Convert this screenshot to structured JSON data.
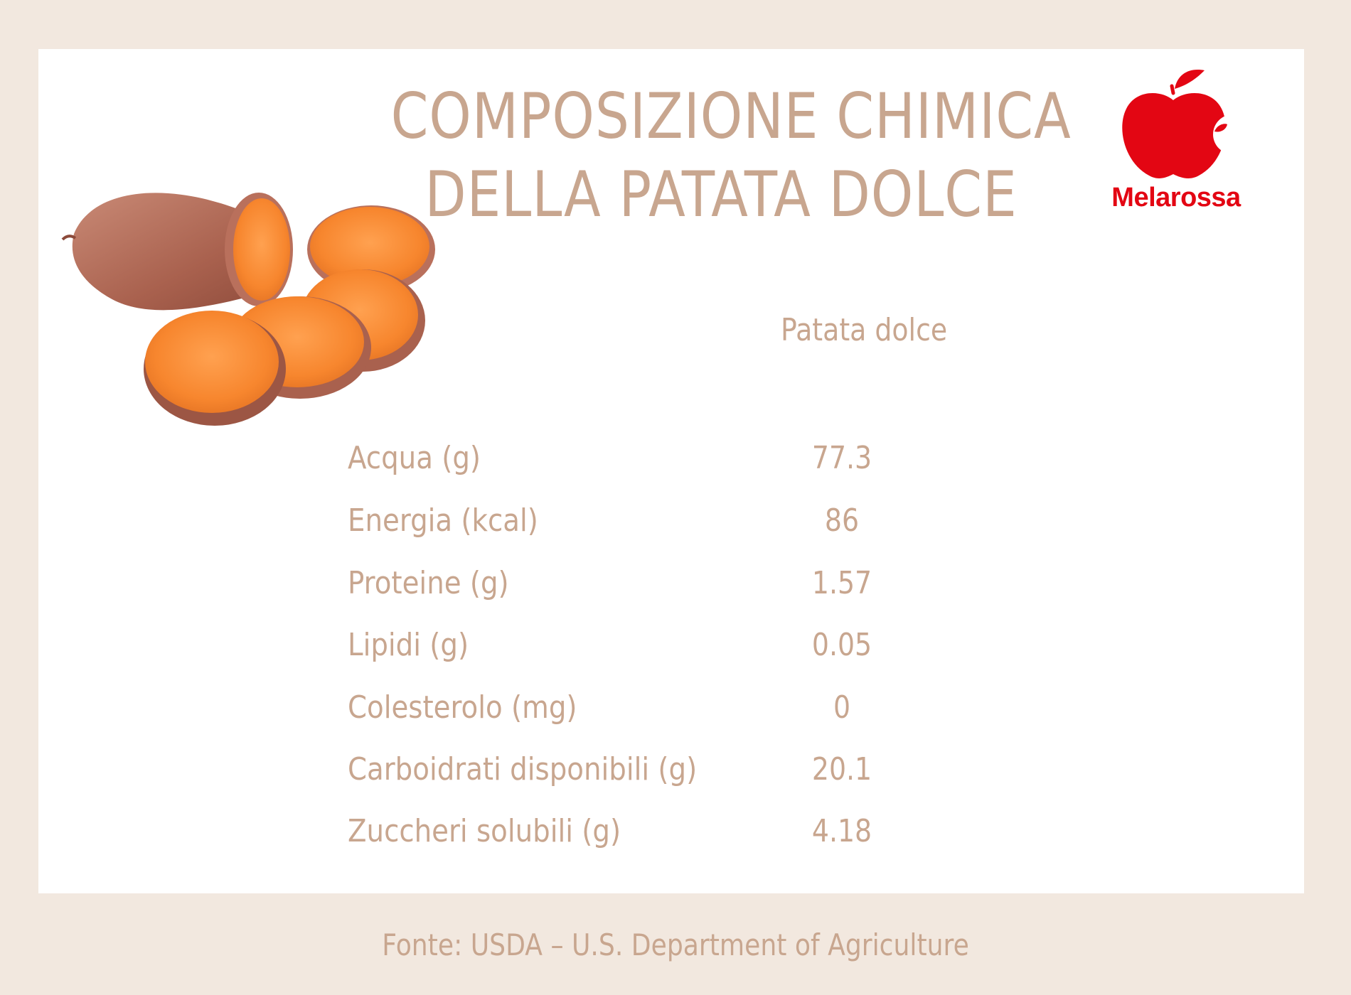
{
  "title": {
    "line1": "COMPOSIZIONE CHIMICA",
    "line2": "DELLA PATATA DOLCE"
  },
  "logo": {
    "text": "Melarossa",
    "icon": "apple-icon",
    "color": "#e30613"
  },
  "table": {
    "column_header": "Patata dolce",
    "rows": [
      {
        "label": "Acqua (g)",
        "value": "77.3"
      },
      {
        "label": "Energia (kcal)",
        "value": "86"
      },
      {
        "label": "Proteine (g)",
        "value": "1.57"
      },
      {
        "label": "Lipidi (g)",
        "value": "0.05"
      },
      {
        "label": "Colesterolo (mg)",
        "value": "0"
      },
      {
        "label": "Carboidrati disponibili (g)",
        "value": "20.1"
      },
      {
        "label": "Zuccheri solubili (g)",
        "value": "4.18"
      }
    ]
  },
  "source": "Fonte: USDA – U.S. Department of Agriculture",
  "colors": {
    "background": "#f2e8df",
    "card": "#ffffff",
    "text": "#c8a68f",
    "accent": "#e30613"
  }
}
